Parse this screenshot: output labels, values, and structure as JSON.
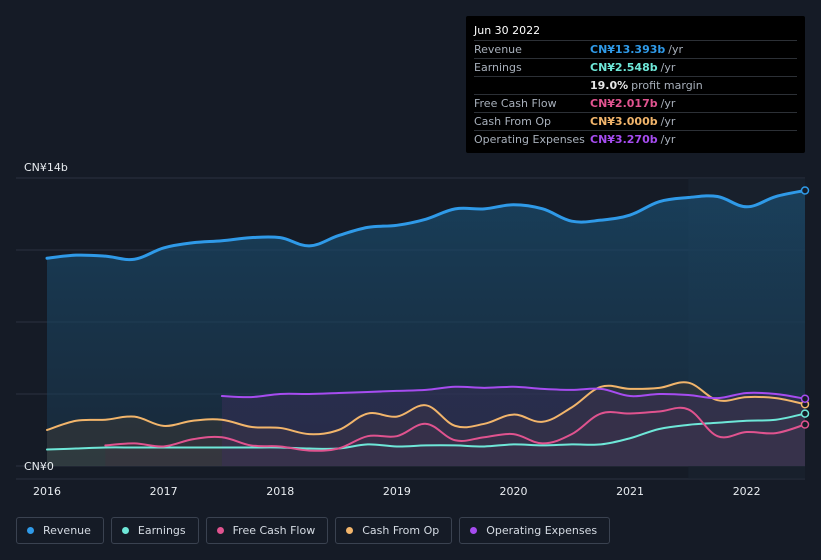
{
  "tooltip": {
    "date": "Jun 30 2022",
    "rows": [
      {
        "label": "Revenue",
        "value": "CN¥13.393b",
        "unit": "/yr",
        "color": "#2f9ae8"
      },
      {
        "label": "Earnings",
        "value": "CN¥2.548b",
        "unit": "/yr",
        "color": "#6ee7d8"
      },
      {
        "label": "",
        "value": "19.0%",
        "unit": "profit margin",
        "color": "#e6e6e6"
      },
      {
        "label": "Free Cash Flow",
        "value": "CN¥2.017b",
        "unit": "/yr",
        "color": "#e0538f"
      },
      {
        "label": "Cash From Op",
        "value": "CN¥3.000b",
        "unit": "/yr",
        "color": "#f2b56b"
      },
      {
        "label": "Operating Expenses",
        "value": "CN¥3.270b",
        "unit": "/yr",
        "color": "#a64cf0"
      }
    ]
  },
  "legend": [
    {
      "label": "Revenue",
      "color": "#2f9ae8"
    },
    {
      "label": "Earnings",
      "color": "#6ee7d8"
    },
    {
      "label": "Free Cash Flow",
      "color": "#e0538f"
    },
    {
      "label": "Cash From Op",
      "color": "#f2b56b"
    },
    {
      "label": "Operating Expenses",
      "color": "#a64cf0"
    }
  ],
  "chart_data": {
    "type": "area",
    "y_unit": "CN¥ billions",
    "ylim": [
      0,
      14
    ],
    "y_tick_labels": [
      "CN¥14b",
      "CN¥0"
    ],
    "x_tick_labels": [
      "2016",
      "2017",
      "2018",
      "2019",
      "2020",
      "2021",
      "2022"
    ],
    "xlim": [
      2016.0,
      2022.5
    ],
    "grid": true,
    "highlight_from": 2021.5,
    "series": [
      {
        "name": "Revenue",
        "color": "#2f9ae8",
        "points": [
          [
            2016.0,
            10.1
          ],
          [
            2016.25,
            10.25
          ],
          [
            2016.5,
            10.2
          ],
          [
            2016.75,
            10.05
          ],
          [
            2017.0,
            10.6
          ],
          [
            2017.25,
            10.85
          ],
          [
            2017.5,
            10.95
          ],
          [
            2017.75,
            11.1
          ],
          [
            2018.0,
            11.1
          ],
          [
            2018.25,
            10.7
          ],
          [
            2018.5,
            11.2
          ],
          [
            2018.75,
            11.6
          ],
          [
            2019.0,
            11.7
          ],
          [
            2019.25,
            12.0
          ],
          [
            2019.5,
            12.5
          ],
          [
            2019.75,
            12.5
          ],
          [
            2020.0,
            12.7
          ],
          [
            2020.25,
            12.5
          ],
          [
            2020.5,
            11.9
          ],
          [
            2020.75,
            11.95
          ],
          [
            2021.0,
            12.2
          ],
          [
            2021.25,
            12.85
          ],
          [
            2021.5,
            13.05
          ],
          [
            2021.75,
            13.1
          ],
          [
            2022.0,
            12.6
          ],
          [
            2022.25,
            13.1
          ],
          [
            2022.5,
            13.393
          ]
        ]
      },
      {
        "name": "Earnings",
        "color": "#6ee7d8",
        "points": [
          [
            2016.0,
            0.8
          ],
          [
            2016.25,
            0.85
          ],
          [
            2016.5,
            0.9
          ],
          [
            2016.75,
            0.9
          ],
          [
            2017.0,
            0.9
          ],
          [
            2017.25,
            0.9
          ],
          [
            2017.5,
            0.9
          ],
          [
            2017.75,
            0.9
          ],
          [
            2018.0,
            0.9
          ],
          [
            2018.25,
            0.85
          ],
          [
            2018.5,
            0.85
          ],
          [
            2018.75,
            1.05
          ],
          [
            2019.0,
            0.95
          ],
          [
            2019.25,
            1.0
          ],
          [
            2019.5,
            1.0
          ],
          [
            2019.75,
            0.95
          ],
          [
            2020.0,
            1.05
          ],
          [
            2020.25,
            1.0
          ],
          [
            2020.5,
            1.05
          ],
          [
            2020.75,
            1.05
          ],
          [
            2021.0,
            1.35
          ],
          [
            2021.25,
            1.8
          ],
          [
            2021.5,
            2.0
          ],
          [
            2021.75,
            2.1
          ],
          [
            2022.0,
            2.2
          ],
          [
            2022.25,
            2.25
          ],
          [
            2022.5,
            2.548
          ]
        ]
      },
      {
        "name": "Free Cash Flow",
        "color": "#e0538f",
        "start": 2016.5,
        "points": [
          [
            2016.5,
            1.0
          ],
          [
            2016.75,
            1.1
          ],
          [
            2017.0,
            0.95
          ],
          [
            2017.25,
            1.3
          ],
          [
            2017.5,
            1.4
          ],
          [
            2017.75,
            1.0
          ],
          [
            2018.0,
            0.95
          ],
          [
            2018.25,
            0.75
          ],
          [
            2018.5,
            0.85
          ],
          [
            2018.75,
            1.45
          ],
          [
            2019.0,
            1.45
          ],
          [
            2019.25,
            2.05
          ],
          [
            2019.5,
            1.25
          ],
          [
            2019.75,
            1.4
          ],
          [
            2020.0,
            1.55
          ],
          [
            2020.25,
            1.1
          ],
          [
            2020.5,
            1.55
          ],
          [
            2020.75,
            2.55
          ],
          [
            2021.0,
            2.55
          ],
          [
            2021.25,
            2.65
          ],
          [
            2021.5,
            2.75
          ],
          [
            2021.75,
            1.45
          ],
          [
            2022.0,
            1.65
          ],
          [
            2022.25,
            1.6
          ],
          [
            2022.5,
            2.017
          ]
        ]
      },
      {
        "name": "Cash From Op",
        "color": "#f2b56b",
        "points": [
          [
            2016.0,
            1.75
          ],
          [
            2016.25,
            2.2
          ],
          [
            2016.5,
            2.25
          ],
          [
            2016.75,
            2.4
          ],
          [
            2017.0,
            1.95
          ],
          [
            2017.25,
            2.2
          ],
          [
            2017.5,
            2.25
          ],
          [
            2017.75,
            1.9
          ],
          [
            2018.0,
            1.85
          ],
          [
            2018.25,
            1.55
          ],
          [
            2018.5,
            1.75
          ],
          [
            2018.75,
            2.55
          ],
          [
            2019.0,
            2.4
          ],
          [
            2019.25,
            2.95
          ],
          [
            2019.5,
            1.95
          ],
          [
            2019.75,
            2.05
          ],
          [
            2020.0,
            2.5
          ],
          [
            2020.25,
            2.15
          ],
          [
            2020.5,
            2.85
          ],
          [
            2020.75,
            3.85
          ],
          [
            2021.0,
            3.75
          ],
          [
            2021.25,
            3.8
          ],
          [
            2021.5,
            4.05
          ],
          [
            2021.75,
            3.2
          ],
          [
            2022.0,
            3.35
          ],
          [
            2022.25,
            3.3
          ],
          [
            2022.5,
            3.0
          ]
        ]
      },
      {
        "name": "Operating Expenses",
        "color": "#a64cf0",
        "start": 2017.5,
        "points": [
          [
            2017.5,
            3.4
          ],
          [
            2017.75,
            3.35
          ],
          [
            2018.0,
            3.5
          ],
          [
            2018.25,
            3.5
          ],
          [
            2018.5,
            3.55
          ],
          [
            2018.75,
            3.6
          ],
          [
            2019.0,
            3.65
          ],
          [
            2019.25,
            3.7
          ],
          [
            2019.5,
            3.85
          ],
          [
            2019.75,
            3.8
          ],
          [
            2020.0,
            3.85
          ],
          [
            2020.25,
            3.75
          ],
          [
            2020.5,
            3.7
          ],
          [
            2020.75,
            3.75
          ],
          [
            2021.0,
            3.4
          ],
          [
            2021.25,
            3.5
          ],
          [
            2021.5,
            3.45
          ],
          [
            2021.75,
            3.3
          ],
          [
            2022.0,
            3.55
          ],
          [
            2022.25,
            3.5
          ],
          [
            2022.5,
            3.27
          ]
        ]
      }
    ]
  }
}
